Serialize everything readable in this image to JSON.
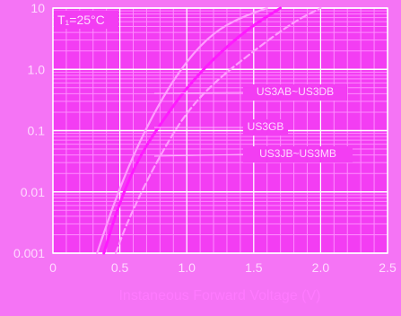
{
  "chart_data": {
    "type": "line",
    "title": "",
    "xlabel": "Instaneous Forward Voltage (V)",
    "ylabel": "",
    "xlim": [
      0,
      2.5
    ],
    "ylim": [
      0.001,
      10
    ],
    "y_scale": "log",
    "grid": true,
    "annotation": "T₁=25°C",
    "x_ticks": [
      "0",
      "0.5",
      "1.0",
      "1.5",
      "2.0",
      "2.5"
    ],
    "y_ticks": [
      "10",
      "1.0",
      "0.1",
      "0.01",
      "0.001"
    ],
    "series": [
      {
        "name": "US3AB~US3DB",
        "style": "solid",
        "color": "#ff9cff",
        "x": [
          0.33,
          0.45,
          0.6,
          0.8,
          1.0,
          1.2,
          1.4,
          1.6
        ],
        "y": [
          0.001,
          0.006,
          0.04,
          0.3,
          1.4,
          4.0,
          7.0,
          10
        ]
      },
      {
        "name": "US3GB",
        "style": "solid",
        "color": "#ff1aff",
        "x": [
          0.38,
          0.5,
          0.65,
          0.85,
          1.0,
          1.2,
          1.45,
          1.7
        ],
        "y": [
          0.001,
          0.007,
          0.04,
          0.18,
          0.5,
          1.5,
          4.5,
          10
        ]
      },
      {
        "name": "US3JB~US3MB",
        "style": "dashed",
        "color": "#ff9cff",
        "x": [
          0.47,
          0.55,
          0.7,
          0.85,
          1.0,
          1.2,
          1.5,
          1.8,
          2.0
        ],
        "y": [
          0.001,
          0.003,
          0.015,
          0.06,
          0.2,
          0.6,
          2.0,
          6.0,
          10
        ]
      }
    ],
    "legend_labels": [
      "US3AB~US3DB",
      "US3GB",
      "US3JB~US3MB"
    ],
    "colors": {
      "background": "#f574f5",
      "plot_background": "#f33df3",
      "grid_minor": "#ff8cff",
      "grid_major": "#ffffff",
      "text": "#ffd9ff",
      "axis_label": "#ff7aff"
    }
  }
}
